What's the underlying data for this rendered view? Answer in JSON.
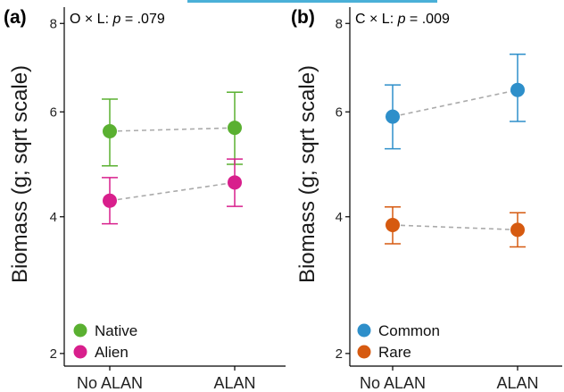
{
  "chart_data": [
    {
      "type": "scatter",
      "panel_label": "(a)",
      "stat_prefix": "O × L: ",
      "stat_p": "p",
      "stat_value": " = .079",
      "ylabel": "Biomass (g; sqrt scale)",
      "y_scale": "sqrt",
      "ylim": [
        1.85,
        8.4
      ],
      "yticks": [
        2,
        4,
        6,
        8
      ],
      "categories": [
        "No ALAN",
        "ALAN"
      ],
      "legend_position": "bottom-left",
      "series": [
        {
          "name": "Native",
          "color": "#5ab031",
          "values": [
            5.6,
            5.67
          ],
          "lower": [
            4.92,
            4.95
          ],
          "upper": [
            6.27,
            6.42
          ]
        },
        {
          "name": "Alien",
          "color": "#d81f8c",
          "values": [
            4.28,
            4.61
          ],
          "lower": [
            3.88,
            4.18
          ],
          "upper": [
            4.7,
            5.05
          ]
        }
      ]
    },
    {
      "type": "scatter",
      "panel_label": "(b)",
      "stat_prefix": "C × L: ",
      "stat_p": "p",
      "stat_value": " = .009",
      "ylabel": "Biomass (g; sqrt scale)",
      "y_scale": "sqrt",
      "ylim": [
        1.85,
        8.4
      ],
      "yticks": [
        2,
        4,
        6,
        8
      ],
      "categories": [
        "No ALAN",
        "ALAN"
      ],
      "legend_position": "bottom-left",
      "series": [
        {
          "name": "Common",
          "color": "#2e8fca",
          "values": [
            5.9,
            6.47
          ],
          "lower": [
            5.25,
            5.8
          ],
          "upper": [
            6.58,
            7.27
          ]
        },
        {
          "name": "Rare",
          "color": "#d65a10",
          "values": [
            3.86,
            3.78
          ],
          "lower": [
            3.55,
            3.5
          ],
          "upper": [
            4.17,
            4.07
          ]
        }
      ]
    }
  ]
}
